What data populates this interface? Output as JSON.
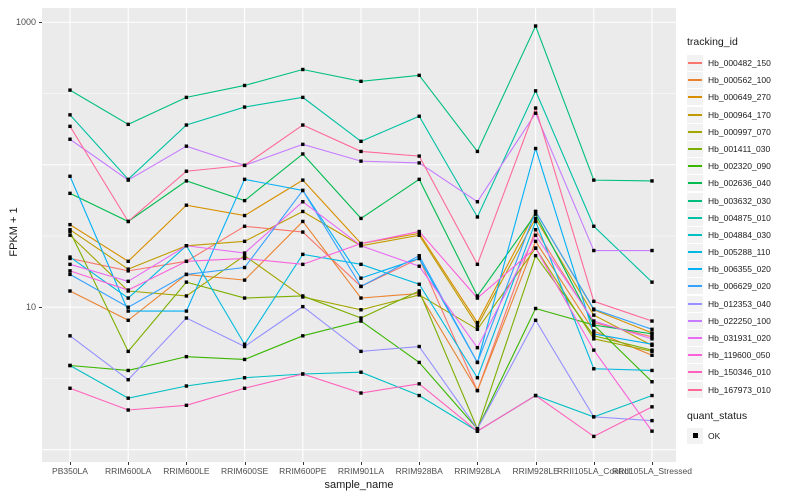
{
  "chart_data": {
    "type": "line",
    "xlabel": "sample_name",
    "ylabel": "FPKM + 1",
    "y_scale": "log10",
    "ylim": [
      0.82,
      1259
    ],
    "y_ticks": [
      {
        "value": 1000,
        "label": "1000"
      },
      {
        "value": 10,
        "label": "10"
      }
    ],
    "gridlines": {
      "h_major": [
        1,
        10,
        100,
        1000
      ],
      "h_minor": [
        3.162,
        31.62,
        316.23
      ],
      "vertical_at_categories": true
    },
    "panel_bg": "#EBEBEB",
    "grid_color": "#FFFFFF",
    "point_marker": {
      "shape": "square",
      "color": "#000000",
      "size": 3.4
    },
    "legend": {
      "title": "tracking_id",
      "position": "right"
    },
    "quant_legend": {
      "title": "quant_status",
      "items": [
        {
          "label": "OK",
          "marker": "black-square"
        }
      ]
    },
    "categories": [
      "PB350LA",
      "RRIM600LA",
      "RRIM600LE",
      "RRIM600SE",
      "RRIM600PE",
      "RRIM901LA",
      "RRIM928BA",
      "RRIM928LA",
      "RRIM928LE",
      "RRII105LA_Control",
      "RRII105LA_Stressed"
    ],
    "series": [
      {
        "name": "Hb_000482_150",
        "color": "#F8766D",
        "values": [
          22,
          18,
          21,
          37,
          33.7,
          14,
          22,
          2.6,
          35,
          7.8,
          6.2
        ]
      },
      {
        "name": "Hb_000562_100",
        "color": "#EA8331",
        "values": [
          13,
          8.1,
          17,
          15.5,
          40,
          11.6,
          12.5,
          2.6,
          29,
          6.8,
          4.6
        ]
      },
      {
        "name": "Hb_000649_270",
        "color": "#D89000",
        "values": [
          38,
          21,
          52,
          44,
          78,
          28,
          33,
          7.8,
          47,
          9.6,
          6.6
        ]
      },
      {
        "name": "Hb_000964_170",
        "color": "#C09B00",
        "values": [
          35,
          18.5,
          27,
          29,
          47,
          27,
          32,
          7.4,
          42,
          8.8,
          5.4
        ]
      },
      {
        "name": "Hb_000997_070",
        "color": "#A3A500",
        "values": [
          32,
          13,
          12,
          23,
          11.8,
          9.6,
          12.2,
          7.0,
          26,
          6.0,
          4.9
        ]
      },
      {
        "name": "Hb_001411_030",
        "color": "#7CAE00",
        "values": [
          34,
          4.9,
          15,
          11.6,
          12,
          8.4,
          13,
          1.4,
          23,
          6.3,
          5.0
        ]
      },
      {
        "name": "Hb_002320_090",
        "color": "#39B600",
        "values": [
          3.9,
          3.6,
          4.5,
          4.3,
          6.3,
          8.0,
          4.1,
          1.4,
          9.8,
          7.5,
          3.0
        ]
      },
      {
        "name": "Hb_002636_040",
        "color": "#00BB4E",
        "values": [
          63,
          40,
          77,
          56,
          119,
          42,
          79,
          12,
          45,
          7.5,
          6.5
        ]
      },
      {
        "name": "Hb_003632_030",
        "color": "#00BF7D",
        "values": [
          334,
          192,
          297,
          360,
          466,
          385,
          424,
          124,
          941,
          78,
          77
        ]
      },
      {
        "name": "Hb_004875_010",
        "color": "#00C1A3",
        "values": [
          224,
          79,
          190,
          254,
          297,
          146,
          219,
          43,
          330,
          37,
          15
        ]
      },
      {
        "name": "Hb_004884_030",
        "color": "#00BFC4",
        "values": [
          3.9,
          2.3,
          2.8,
          3.2,
          3.4,
          3.5,
          2.4,
          1.35,
          2.4,
          1.7,
          2.4
        ]
      },
      {
        "name": "Hb_005288_110",
        "color": "#00BAE0",
        "values": [
          22.5,
          11.6,
          27,
          5.5,
          23.5,
          20,
          14.5,
          3.2,
          40,
          3.7,
          3.6
        ]
      },
      {
        "name": "Hb_006355_020",
        "color": "#00B0F6",
        "values": [
          83,
          9.4,
          9.4,
          79,
          66,
          16,
          22,
          4.1,
          130,
          6.5,
          5.5
        ]
      },
      {
        "name": "Hb_006629_020",
        "color": "#35A2FF",
        "values": [
          17,
          10,
          17,
          19,
          66,
          14,
          23,
          4.1,
          47,
          9.7,
          7.0
        ]
      },
      {
        "name": "Hb_012353_040",
        "color": "#9590FF",
        "values": [
          6.3,
          3.1,
          8.4,
          5.3,
          10.1,
          4.9,
          5.3,
          1.4,
          8.1,
          1.7,
          1.6
        ]
      },
      {
        "name": "Hb_022250_100",
        "color": "#C77CFF",
        "values": [
          151,
          78,
          135,
          99,
          139,
          106,
          103,
          55,
          230,
          25,
          25
        ]
      },
      {
        "name": "Hb_031931_020",
        "color": "#E76BF3",
        "values": [
          20,
          15.2,
          27,
          24,
          55,
          27,
          19.4,
          5.2,
          32,
          8.0,
          6.0
        ]
      },
      {
        "name": "Hb_119600_050",
        "color": "#FA62DB",
        "values": [
          18,
          13.2,
          21,
          22,
          20,
          28,
          34,
          11.6,
          26,
          5.0,
          1.35
        ]
      },
      {
        "name": "Hb_150346_010",
        "color": "#FF62BC",
        "values": [
          2.7,
          1.9,
          2.05,
          2.7,
          3.4,
          2.5,
          2.9,
          1.35,
          2.4,
          1.24,
          2.0
        ]
      },
      {
        "name": "Hb_167973_010",
        "color": "#FF6A98",
        "values": [
          186,
          40,
          90,
          99,
          190,
          124,
          115,
          20,
          250,
          11,
          8.0
        ]
      }
    ]
  }
}
